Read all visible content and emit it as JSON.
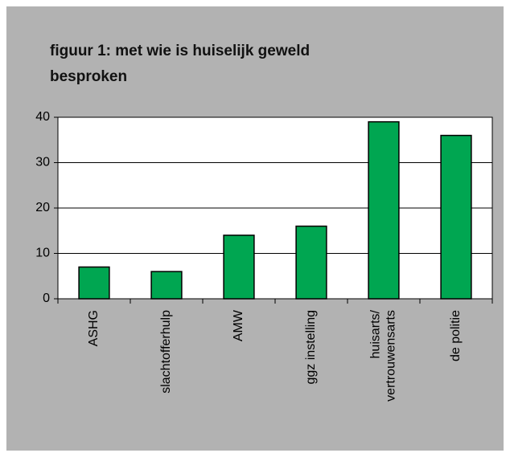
{
  "chart_data": {
    "type": "bar",
    "title": "figuur 1: met wie is huiselijk geweld besproken",
    "categories": [
      "ASHG",
      "slachtofferhulp",
      "AMW",
      "ggz instelling",
      "huisarts/\nvertrouwensarts",
      "de politie"
    ],
    "values": [
      7,
      6,
      14,
      16,
      39,
      36
    ],
    "color": "#00a651",
    "ylim": [
      0,
      40
    ],
    "yticks": [
      0,
      10,
      20,
      30,
      40
    ],
    "grid": true
  }
}
